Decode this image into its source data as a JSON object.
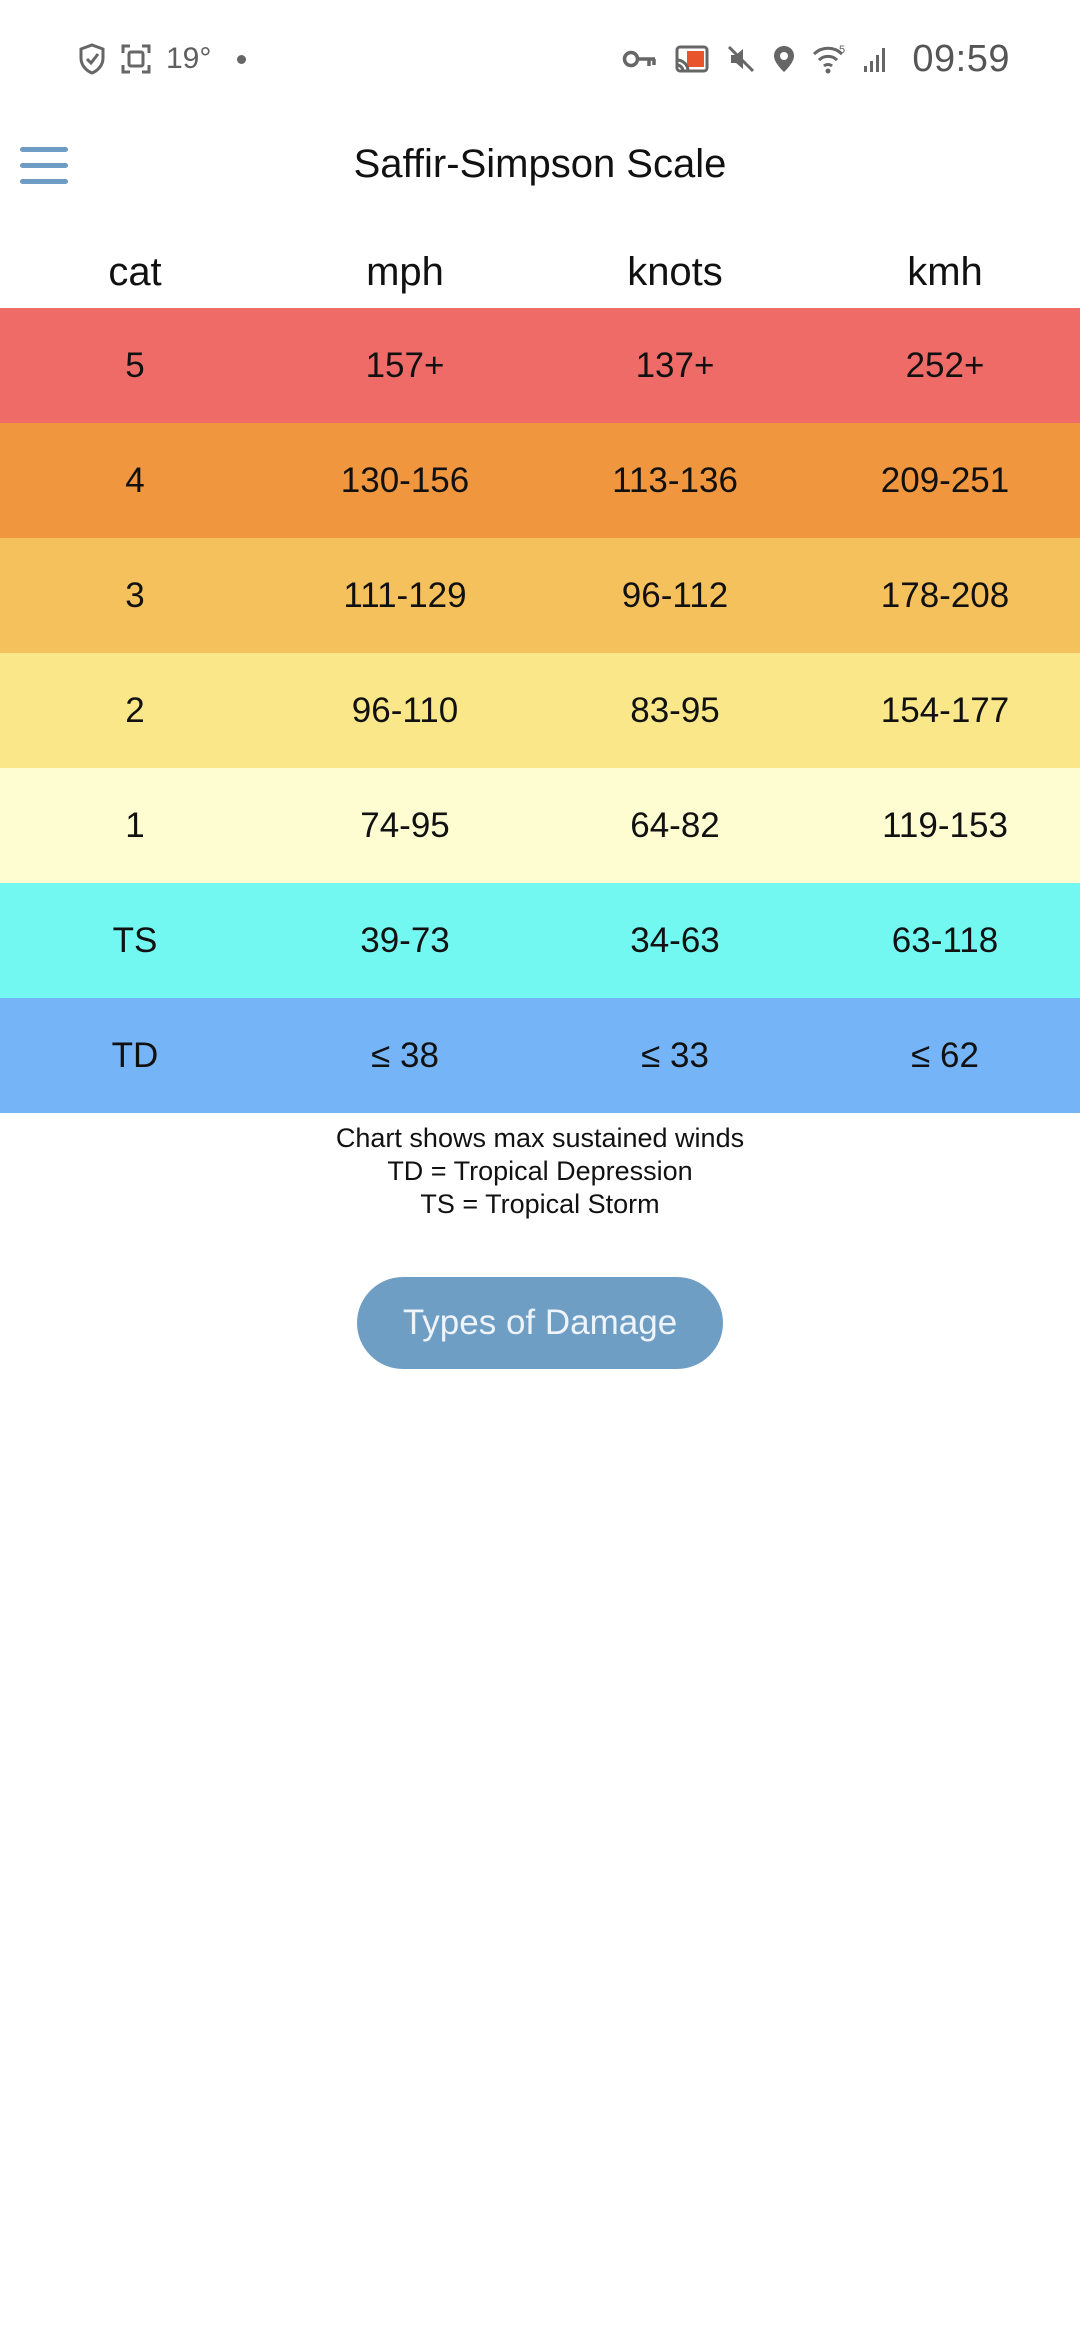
{
  "status_bar": {
    "temperature": "19°",
    "time": "09:59",
    "wifi_badge": "5",
    "icons_left": [
      "shield-icon",
      "screenshot-icon"
    ],
    "icons_right": [
      "key-icon",
      "cast-icon",
      "mute-icon",
      "location-icon",
      "wifi-icon",
      "signal-icon"
    ]
  },
  "app_bar": {
    "title": "Saffir-Simpson Scale",
    "menu_icon": "hamburger-menu-icon",
    "accent_color": "#6f9cc4"
  },
  "table": {
    "headers": [
      "cat",
      "mph",
      "knots",
      "kmh"
    ],
    "rows": [
      {
        "cat": "5",
        "mph": "157+",
        "knots": "137+",
        "kmh": "252+",
        "color": "#ee6b68"
      },
      {
        "cat": "4",
        "mph": "130-156",
        "knots": "113-136",
        "kmh": "209-251",
        "color": "#f0963f"
      },
      {
        "cat": "3",
        "mph": "111-129",
        "knots": "96-112",
        "kmh": "178-208",
        "color": "#f5c15c"
      },
      {
        "cat": "2",
        "mph": "96-110",
        "knots": "83-95",
        "kmh": "154-177",
        "color": "#fae78a"
      },
      {
        "cat": "1",
        "mph": "74-95",
        "knots": "64-82",
        "kmh": "119-153",
        "color": "#fefdd2"
      },
      {
        "cat": "TS",
        "mph": "39-73",
        "knots": "34-63",
        "kmh": "63-118",
        "color": "#72f8f1"
      },
      {
        "cat": "TD",
        "mph": "≤ 38",
        "knots": "≤ 33",
        "kmh": "≤ 62",
        "color": "#75b5f7"
      }
    ]
  },
  "footnotes": [
    "Chart shows max sustained winds",
    "TD = Tropical Depression",
    "TS = Tropical Storm"
  ],
  "damage_button": {
    "label": "Types of Damage",
    "color": "#6f9ec4"
  }
}
